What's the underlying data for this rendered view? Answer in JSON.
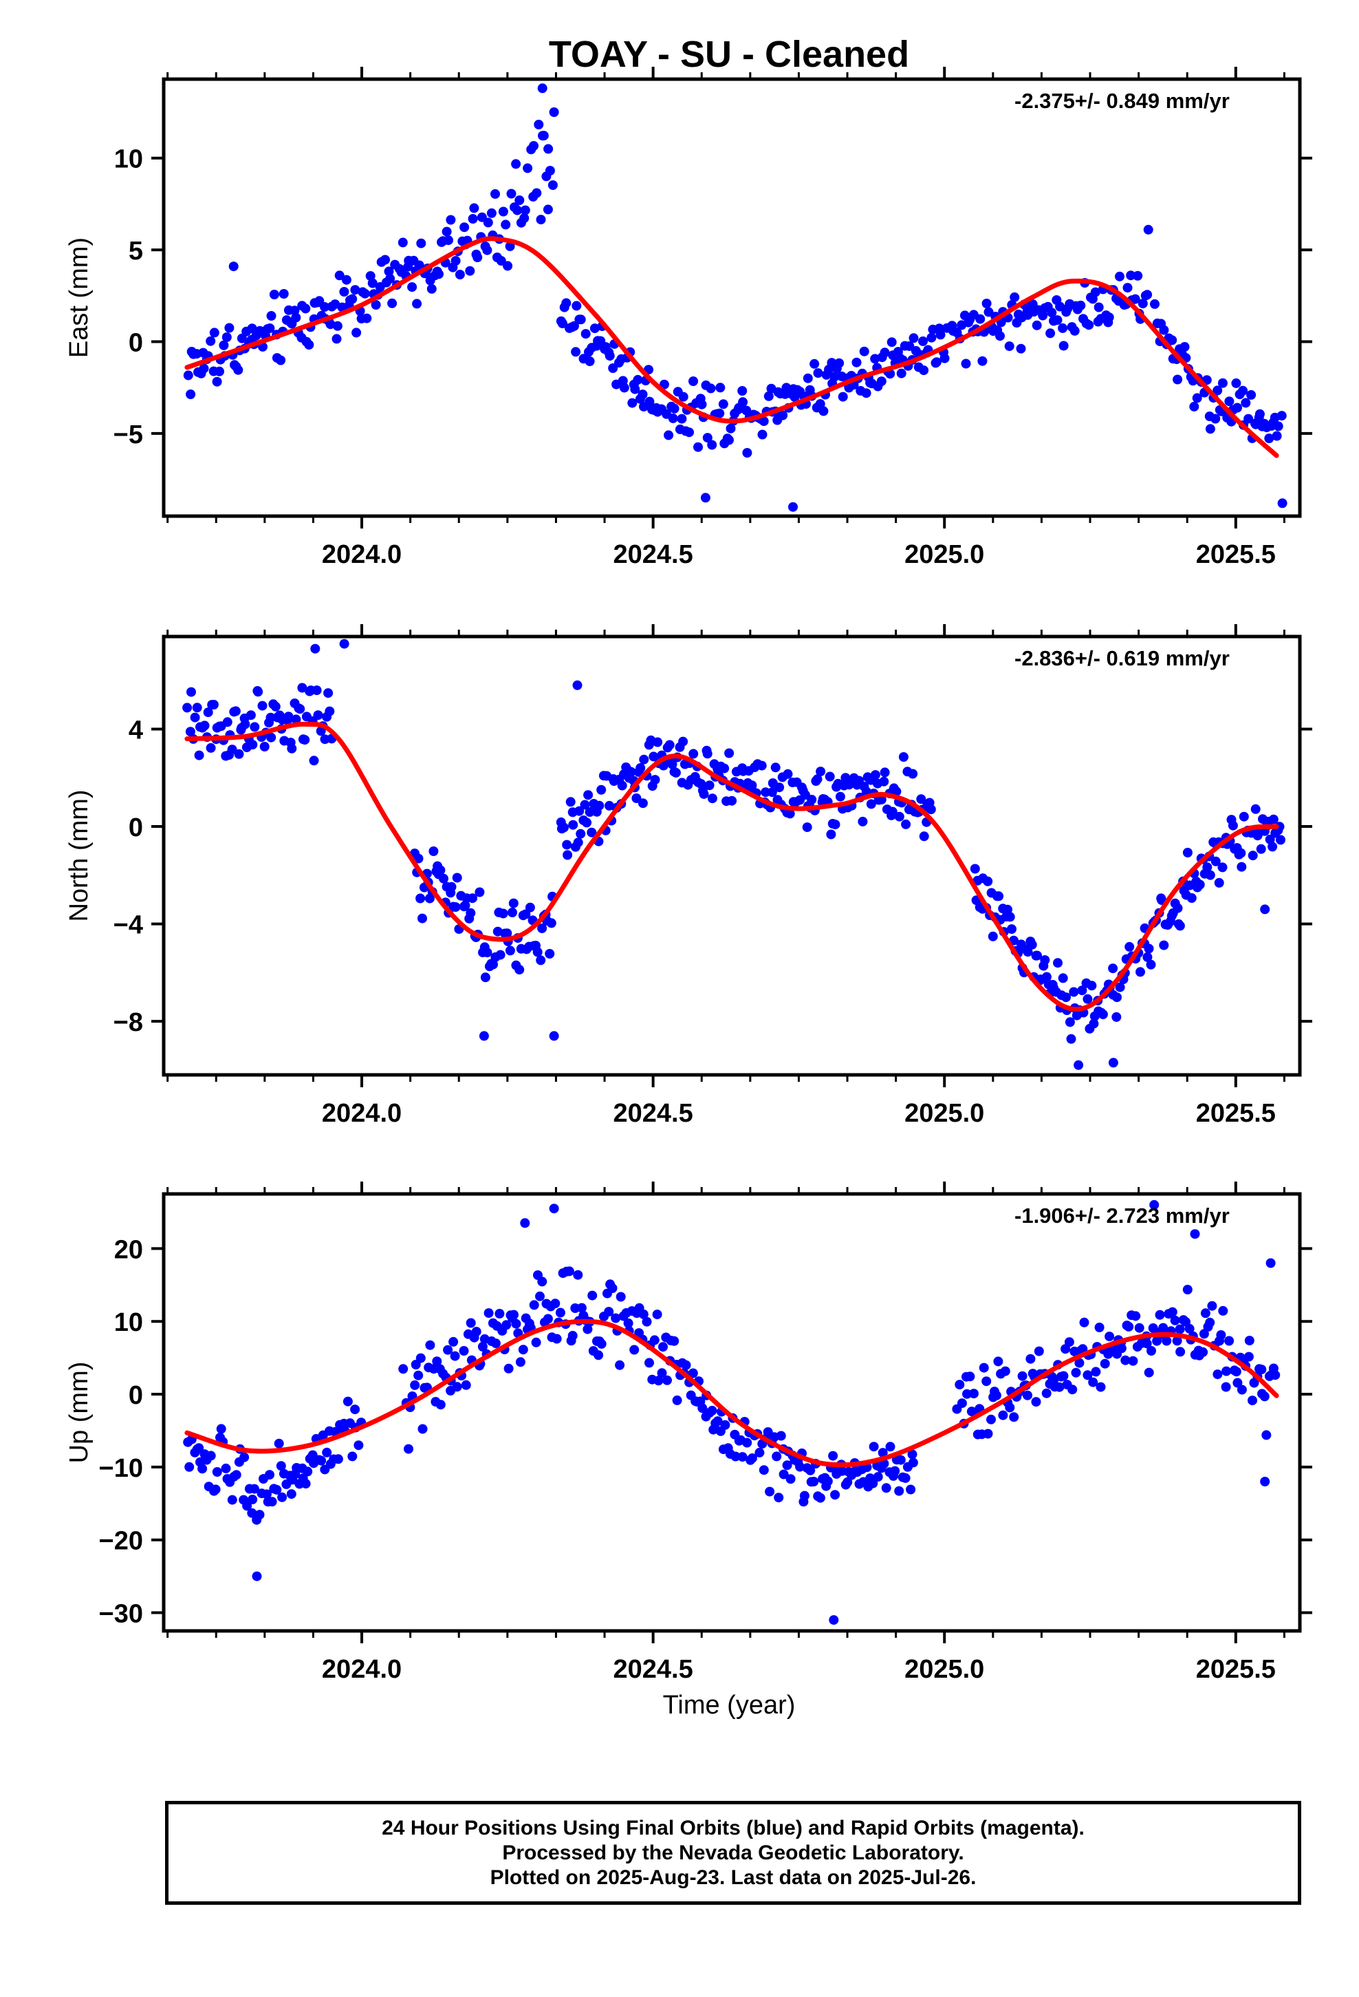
{
  "title": "TOAY  - SU - Cleaned",
  "xlabel": "Time (year)",
  "footer": {
    "line1": "24 Hour Positions Using Final Orbits (blue) and Rapid Orbits (magenta).",
    "line2": "Processed by the Nevada Geodetic Laboratory.",
    "line3": "Plotted on 2025-Aug-23. Last data on 2025-Jul-26."
  },
  "colors": {
    "points": "#0000ff",
    "fit": "#ff0000",
    "axes": "#000000"
  },
  "chart_data": [
    {
      "type": "scatter",
      "name": "east",
      "ylabel": "East (mm)",
      "rate_text": "-2.375+/- 0.849 mm/yr",
      "xlim": [
        2023.66,
        2025.61
      ],
      "ylim": [
        -9.5,
        14.3
      ],
      "xticks": [
        2024.0,
        2024.5,
        2025.0,
        2025.5
      ],
      "xtick_labels": [
        "2024.0",
        "2024.5",
        "2025.0",
        "2025.5"
      ],
      "yticks": [
        -5,
        0,
        5,
        10
      ],
      "fit_curve": {
        "x": [
          2023.7,
          2023.8,
          2023.9,
          2024.0,
          2024.1,
          2024.18,
          2024.23,
          2024.3,
          2024.4,
          2024.5,
          2024.58,
          2024.65,
          2024.75,
          2024.85,
          2024.95,
          2025.05,
          2025.15,
          2025.22,
          2025.3,
          2025.4,
          2025.5,
          2025.57
        ],
        "y": [
          -1.4,
          -0.3,
          0.8,
          2.0,
          3.8,
          5.2,
          5.6,
          4.8,
          1.5,
          -2.2,
          -3.9,
          -4.3,
          -3.3,
          -2.0,
          -1.0,
          0.5,
          2.4,
          3.3,
          2.6,
          -0.8,
          -4.2,
          -6.2
        ]
      },
      "trend_segments": [
        {
          "x": [
            2023.7,
            2024.0,
            2024.22
          ],
          "y": [
            -1.5,
            2.5,
            5.8
          ],
          "spread": 1.6
        },
        {
          "x": [
            2024.22,
            2024.33
          ],
          "y": [
            5.8,
            9.5
          ],
          "spread": 2.3
        },
        {
          "x": [
            2024.34,
            2024.42,
            2024.5,
            2024.6,
            2024.7
          ],
          "y": [
            1.5,
            -0.5,
            -3.2,
            -4.0,
            -3.6
          ],
          "spread": 1.5
        },
        {
          "x": [
            2024.7,
            2024.85,
            2025.0,
            2025.1,
            2025.25,
            2025.35
          ],
          "y": [
            -3.3,
            -1.6,
            -0.2,
            1.2,
            1.8,
            2.5
          ],
          "spread": 1.3
        },
        {
          "x": [
            2025.36,
            2025.45,
            2025.58
          ],
          "y": [
            1.0,
            -3.0,
            -4.6
          ],
          "spread": 1.3
        }
      ],
      "point_count": 520,
      "outliers": [
        {
          "x": 2024.31,
          "y": 13.8
        },
        {
          "x": 2024.33,
          "y": 12.5
        },
        {
          "x": 2024.32,
          "y": 10.5
        },
        {
          "x": 2024.59,
          "y": -8.5
        },
        {
          "x": 2024.74,
          "y": -9.0
        },
        {
          "x": 2025.58,
          "y": -8.8
        },
        {
          "x": 2025.35,
          "y": 6.1
        },
        {
          "x": 2023.78,
          "y": 4.1
        }
      ]
    },
    {
      "type": "scatter",
      "name": "north",
      "ylabel": "North (mm)",
      "rate_text": "-2.836+/- 0.619 mm/yr",
      "xlim": [
        2023.66,
        2025.61
      ],
      "ylim": [
        -10.2,
        7.8
      ],
      "xticks": [
        2024.0,
        2024.5,
        2025.0,
        2025.5
      ],
      "xtick_labels": [
        "2024.0",
        "2024.5",
        "2025.0",
        "2025.5"
      ],
      "yticks": [
        -8,
        -4,
        0,
        4
      ],
      "fit_curve": {
        "x": [
          2023.7,
          2023.8,
          2023.9,
          2023.96,
          2024.05,
          2024.15,
          2024.22,
          2024.3,
          2024.4,
          2024.52,
          2024.62,
          2024.72,
          2024.82,
          2024.9,
          2024.98,
          2025.08,
          2025.16,
          2025.23,
          2025.3,
          2025.4,
          2025.5,
          2025.57
        ],
        "y": [
          3.6,
          3.7,
          4.2,
          3.6,
          0.0,
          -3.5,
          -4.6,
          -4.0,
          -0.5,
          2.8,
          1.9,
          0.8,
          0.9,
          1.3,
          0.2,
          -3.6,
          -6.5,
          -7.5,
          -6.2,
          -2.5,
          -0.3,
          0.0
        ]
      },
      "trend_segments": [
        {
          "x": [
            2023.7,
            2023.95
          ],
          "y": [
            4.0,
            4.2
          ],
          "spread": 1.4
        },
        {
          "x": [
            2024.09,
            2024.22,
            2024.33
          ],
          "y": [
            -1.5,
            -5.0,
            -4.2
          ],
          "spread": 1.5
        },
        {
          "x": [
            2024.34,
            2024.5,
            2024.65,
            2024.8,
            2024.92,
            2024.98
          ],
          "y": [
            -0.5,
            2.6,
            2.0,
            1.0,
            1.4,
            0.3
          ],
          "spread": 1.1
        },
        {
          "x": [
            2025.05,
            2025.22,
            2025.3,
            2025.45,
            2025.58
          ],
          "y": [
            -2.5,
            -7.5,
            -6.5,
            -1.5,
            0.3
          ],
          "spread": 1.0
        }
      ],
      "point_count": 520,
      "outliers": [
        {
          "x": 2023.92,
          "y": 7.3
        },
        {
          "x": 2023.97,
          "y": 7.5
        },
        {
          "x": 2024.37,
          "y": 5.8
        },
        {
          "x": 2024.33,
          "y": -8.6
        },
        {
          "x": 2024.21,
          "y": -8.6
        },
        {
          "x": 2025.23,
          "y": -9.8
        },
        {
          "x": 2025.29,
          "y": -9.7
        },
        {
          "x": 2025.55,
          "y": -3.4
        }
      ]
    },
    {
      "type": "scatter",
      "name": "up",
      "ylabel": "Up (mm)",
      "rate_text": "-1.906+/- 2.723 mm/yr",
      "xlim": [
        2023.66,
        2025.61
      ],
      "ylim": [
        -32.5,
        27.5
      ],
      "xticks": [
        2024.0,
        2024.5,
        2025.0,
        2025.5
      ],
      "xtick_labels": [
        "2024.0",
        "2024.5",
        "2025.0",
        "2025.5"
      ],
      "yticks": [
        -30,
        -20,
        -10,
        0,
        10,
        20
      ],
      "fit_curve": {
        "x": [
          2023.7,
          2023.8,
          2023.9,
          2024.0,
          2024.1,
          2024.2,
          2024.3,
          2024.38,
          2024.45,
          2024.55,
          2024.65,
          2024.75,
          2024.82,
          2024.9,
          2025.0,
          2025.1,
          2025.2,
          2025.3,
          2025.38,
          2025.45,
          2025.52,
          2025.57
        ],
        "y": [
          -5.3,
          -7.7,
          -7.2,
          -4.5,
          -0.5,
          4.5,
          8.7,
          10.0,
          8.7,
          3.0,
          -4.0,
          -8.5,
          -9.7,
          -8.7,
          -5.3,
          -1.0,
          4.0,
          7.2,
          8.2,
          7.0,
          3.5,
          -0.2
        ]
      },
      "trend_segments": [
        {
          "x": [
            2023.7,
            2023.82,
            2023.92,
            2024.0
          ],
          "y": [
            -8.0,
            -13.5,
            -9.0,
            -5.0
          ],
          "spread": 4.5
        },
        {
          "x": [
            2024.07,
            2024.2,
            2024.32,
            2024.45,
            2024.55,
            2024.62
          ],
          "y": [
            -2.0,
            6.0,
            12.0,
            10.0,
            3.5,
            -4.0
          ],
          "spread": 4.5
        },
        {
          "x": [
            2024.62,
            2024.78,
            2024.95
          ],
          "y": [
            -5.5,
            -11.5,
            -10.0
          ],
          "spread": 3.5
        },
        {
          "x": [
            2025.02,
            2025.15,
            2025.3,
            2025.4,
            2025.5,
            2025.57
          ],
          "y": [
            -2.5,
            2.0,
            7.0,
            10.0,
            5.0,
            -1.0
          ],
          "spread": 4.0
        }
      ],
      "point_count": 480,
      "outliers": [
        {
          "x": 2024.33,
          "y": 25.5
        },
        {
          "x": 2024.28,
          "y": 23.5
        },
        {
          "x": 2025.36,
          "y": 26.0
        },
        {
          "x": 2025.43,
          "y": 22.0
        },
        {
          "x": 2024.81,
          "y": -31.0
        },
        {
          "x": 2023.82,
          "y": -25.0
        },
        {
          "x": 2025.55,
          "y": -12.0
        },
        {
          "x": 2025.56,
          "y": 18.0
        }
      ]
    }
  ]
}
